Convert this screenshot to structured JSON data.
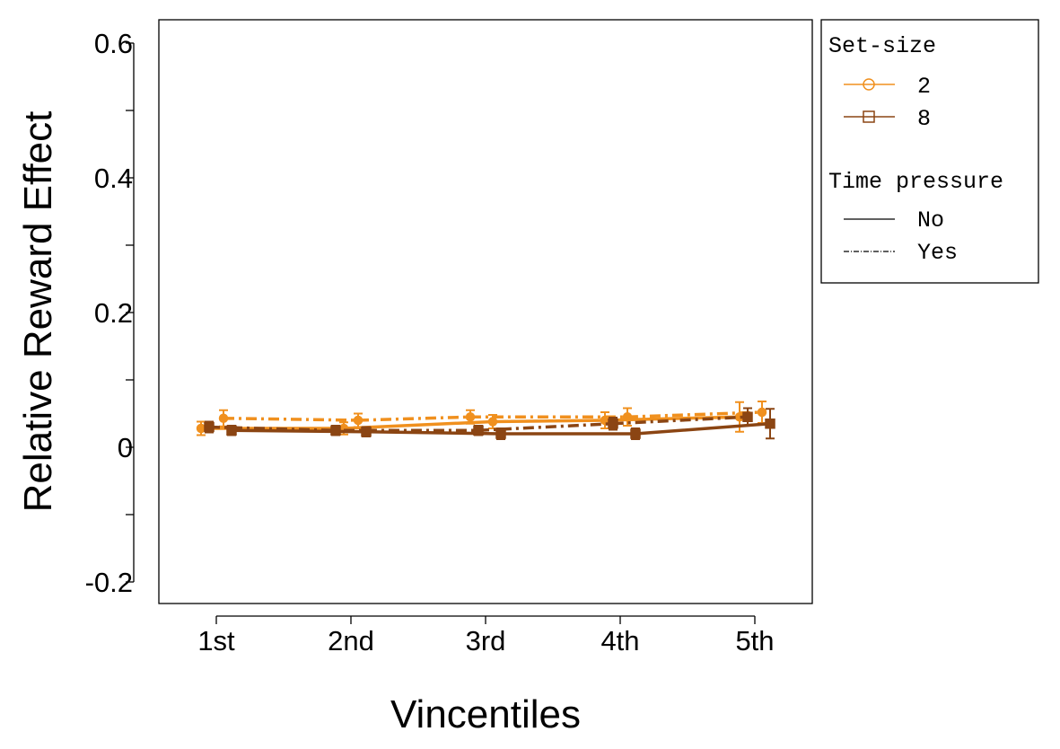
{
  "chart_data": {
    "type": "line",
    "title": "",
    "xlabel": "Vincentiles",
    "ylabel": "Relative Reward Effect",
    "ylim": [
      -0.23,
      0.635
    ],
    "yticks": [
      -0.2,
      -0.1,
      0,
      0.1,
      0.2,
      0.3,
      0.4,
      0.5,
      0.6
    ],
    "yticklabels": [
      "-0.2",
      "",
      "0",
      "",
      "0.2",
      "",
      "0.4",
      "",
      "0.6"
    ],
    "categories": [
      "1st",
      "2nd",
      "3rd",
      "4th",
      "5th"
    ],
    "grid": false,
    "legend": {
      "position": "right-outside-top",
      "setsize_title": "Set-size",
      "setsize_items": [
        {
          "label": "2",
          "color": "#F0901E",
          "marker": "circle"
        },
        {
          "label": "8",
          "color": "#8B4513",
          "marker": "square"
        }
      ],
      "time_title": "Time pressure",
      "time_items": [
        {
          "label": "No",
          "dash": "solid"
        },
        {
          "label": "Yes",
          "dash": "dotdash"
        }
      ]
    },
    "series": [
      {
        "setsize": "2",
        "time_pressure": "No",
        "color": "#F0901E",
        "marker": "circle",
        "dash": "solid",
        "values": [
          0.028,
          0.028,
          0.038,
          0.04,
          0.045
        ],
        "errors": [
          0.01,
          0.009,
          0.01,
          0.012,
          0.022
        ]
      },
      {
        "setsize": "2",
        "time_pressure": "Yes",
        "color": "#F0901E",
        "marker": "circle",
        "dash": "dotdash",
        "values": [
          0.043,
          0.04,
          0.045,
          0.045,
          0.052
        ],
        "errors": [
          0.012,
          0.01,
          0.01,
          0.013,
          0.016
        ]
      },
      {
        "setsize": "8",
        "time_pressure": "No",
        "color": "#8B4513",
        "marker": "square",
        "dash": "solid",
        "values": [
          0.025,
          0.023,
          0.02,
          0.02,
          0.035
        ],
        "errors": [
          0.007,
          0.007,
          0.008,
          0.008,
          0.022
        ]
      },
      {
        "setsize": "8",
        "time_pressure": "Yes",
        "color": "#8B4513",
        "marker": "square",
        "dash": "dotdash",
        "values": [
          0.03,
          0.025,
          0.025,
          0.035,
          0.045
        ],
        "errors": [
          0.008,
          0.007,
          0.007,
          0.009,
          0.013
        ]
      }
    ]
  }
}
